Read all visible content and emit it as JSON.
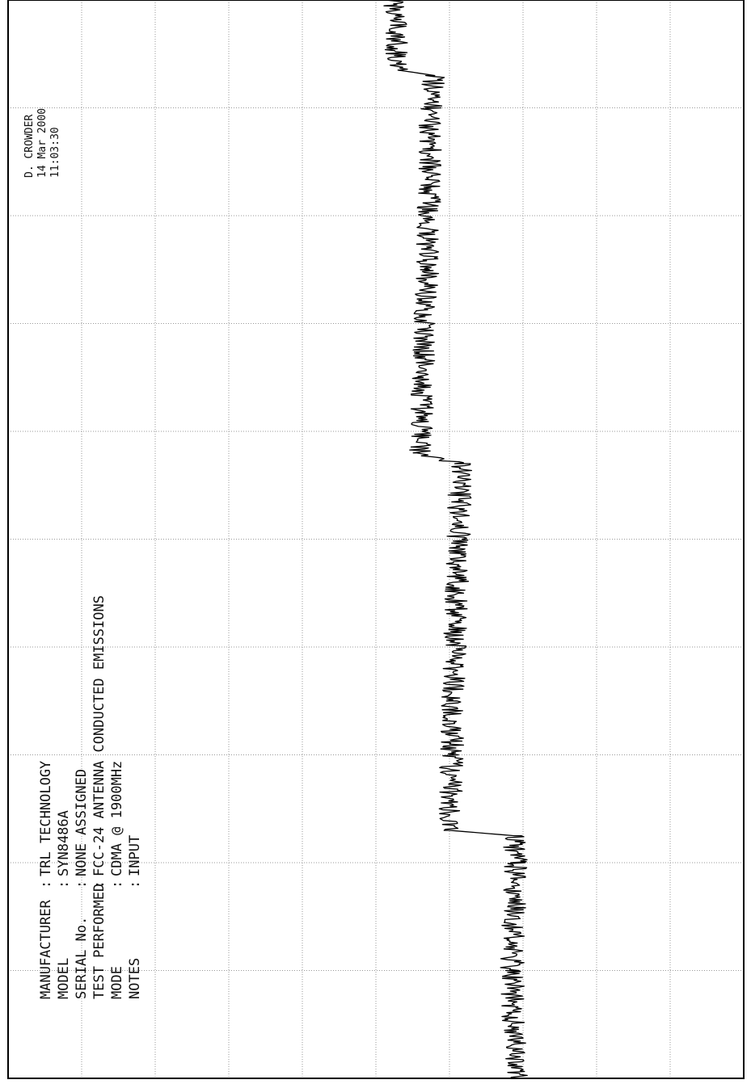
{
  "header": {
    "rows": [
      {
        "label": "MANUFACTURER",
        "value": "TRL TECHNOLOGY"
      },
      {
        "label": "MODEL",
        "value": "SYN8486A"
      },
      {
        "label": "SERIAL No.",
        "value": "NONE ASSIGNED"
      },
      {
        "label": "TEST PERFORMED",
        "value": "FCC-24 ANTENNA CONDUCTED EMISSIONS"
      },
      {
        "label": "MODE",
        "value": "CDMA @ 1900MHz"
      },
      {
        "label": "NOTES",
        "value": "INPUT"
      }
    ]
  },
  "signature": {
    "name": "D. CROWDER",
    "date": "14 Mar 2000",
    "time": "11:03:30"
  },
  "chart_data": {
    "type": "line",
    "title": "",
    "xlabel": "",
    "ylabel": "",
    "grid": true,
    "xlim": [
      0,
      10
    ],
    "ylim": [
      0,
      10
    ],
    "series": [
      {
        "points": [
          [
            0.0,
            6.9
          ],
          [
            1.0,
            6.85
          ],
          [
            2.0,
            6.9
          ],
          [
            2.25,
            6.88
          ],
          [
            2.3,
            6.0
          ],
          [
            3.5,
            6.05
          ],
          [
            4.5,
            6.1
          ],
          [
            5.7,
            6.15
          ],
          [
            5.8,
            5.6
          ],
          [
            6.5,
            5.65
          ],
          [
            7.5,
            5.7
          ],
          [
            9.0,
            5.75
          ],
          [
            9.3,
            5.8
          ],
          [
            9.35,
            5.3
          ],
          [
            10.0,
            5.25
          ]
        ]
      }
    ]
  }
}
